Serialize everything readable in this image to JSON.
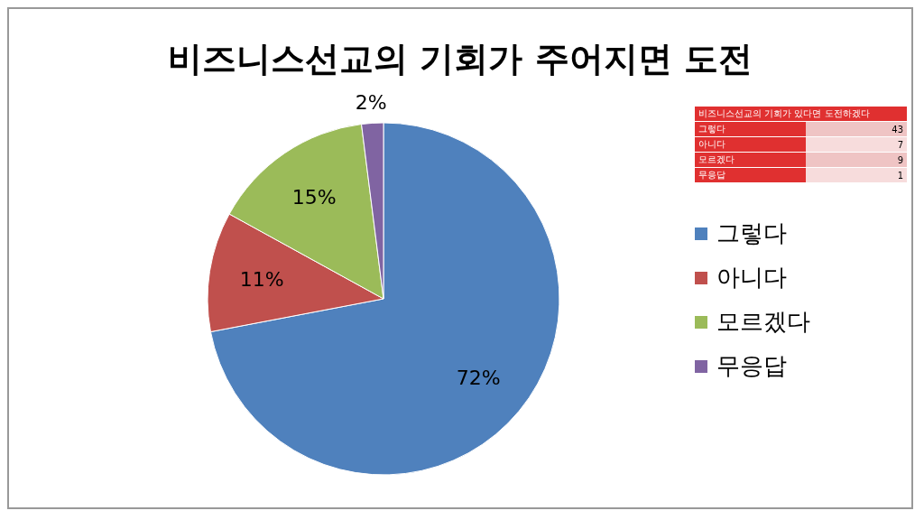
{
  "chart_data": [
    {
      "type": "pie",
      "title": "비즈니스선교의 기회가 주어지면 도전",
      "categories": [
        "그렇다",
        "아니다",
        "모르겠다",
        "무응답"
      ],
      "values": [
        72,
        11,
        15,
        2
      ],
      "value_labels": [
        "72%",
        "11%",
        "15%",
        "2%"
      ],
      "colors": [
        "#4f81bd",
        "#c0504d",
        "#9bbb59",
        "#8064a2"
      ],
      "legend": "right"
    },
    {
      "type": "other",
      "title": "비즈니스선교의 기회가 있다면 도전하겠다",
      "categories": [
        "그렇다",
        "아니다",
        "모르겠다",
        "무응답"
      ],
      "values": [
        43,
        7,
        9,
        1
      ],
      "data_labels": true
    }
  ]
}
